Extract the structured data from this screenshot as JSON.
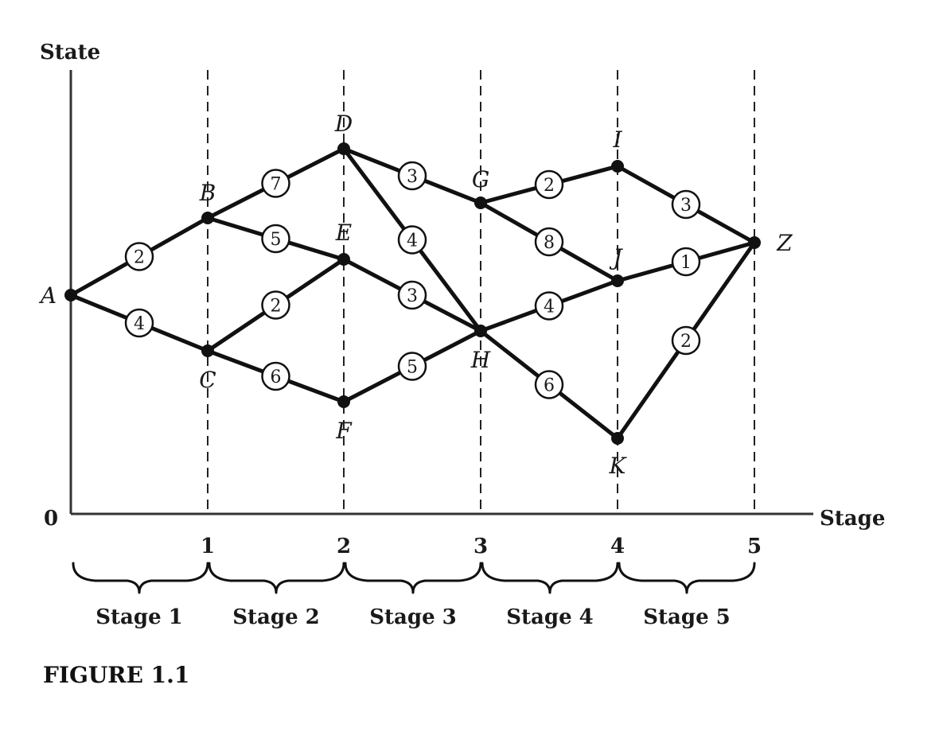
{
  "figure": {
    "caption": "FIGURE 1.1",
    "y_axis_label": "State",
    "x_axis_label": "Stage",
    "origin_label": "0",
    "stage_ticks": [
      "1",
      "2",
      "3",
      "4",
      "5"
    ],
    "stage_labels": [
      "Stage 1",
      "Stage 2",
      "Stage 3",
      "Stage 4",
      "Stage 5"
    ]
  },
  "graph": {
    "nodes": [
      {
        "id": "A",
        "label": "A"
      },
      {
        "id": "B",
        "label": "B"
      },
      {
        "id": "C",
        "label": "C"
      },
      {
        "id": "D",
        "label": "D"
      },
      {
        "id": "E",
        "label": "E"
      },
      {
        "id": "F",
        "label": "F"
      },
      {
        "id": "G",
        "label": "G"
      },
      {
        "id": "H",
        "label": "H"
      },
      {
        "id": "I",
        "label": "I"
      },
      {
        "id": "J",
        "label": "J"
      },
      {
        "id": "K",
        "label": "K"
      },
      {
        "id": "Z",
        "label": "Z"
      }
    ],
    "edges": [
      {
        "from": "A",
        "to": "B",
        "weight": "2"
      },
      {
        "from": "A",
        "to": "C",
        "weight": "4"
      },
      {
        "from": "B",
        "to": "D",
        "weight": "7"
      },
      {
        "from": "B",
        "to": "E",
        "weight": "5"
      },
      {
        "from": "C",
        "to": "E",
        "weight": "2"
      },
      {
        "from": "C",
        "to": "F",
        "weight": "6"
      },
      {
        "from": "D",
        "to": "G",
        "weight": "3"
      },
      {
        "from": "D",
        "to": "H",
        "weight": "4"
      },
      {
        "from": "E",
        "to": "H",
        "weight": "3"
      },
      {
        "from": "F",
        "to": "H",
        "weight": "5"
      },
      {
        "from": "G",
        "to": "I",
        "weight": "2"
      },
      {
        "from": "G",
        "to": "J",
        "weight": "8"
      },
      {
        "from": "H",
        "to": "J",
        "weight": "4"
      },
      {
        "from": "H",
        "to": "K",
        "weight": "6"
      },
      {
        "from": "I",
        "to": "Z",
        "weight": "3"
      },
      {
        "from": "J",
        "to": "Z",
        "weight": "1"
      },
      {
        "from": "K",
        "to": "Z",
        "weight": "2"
      }
    ]
  }
}
